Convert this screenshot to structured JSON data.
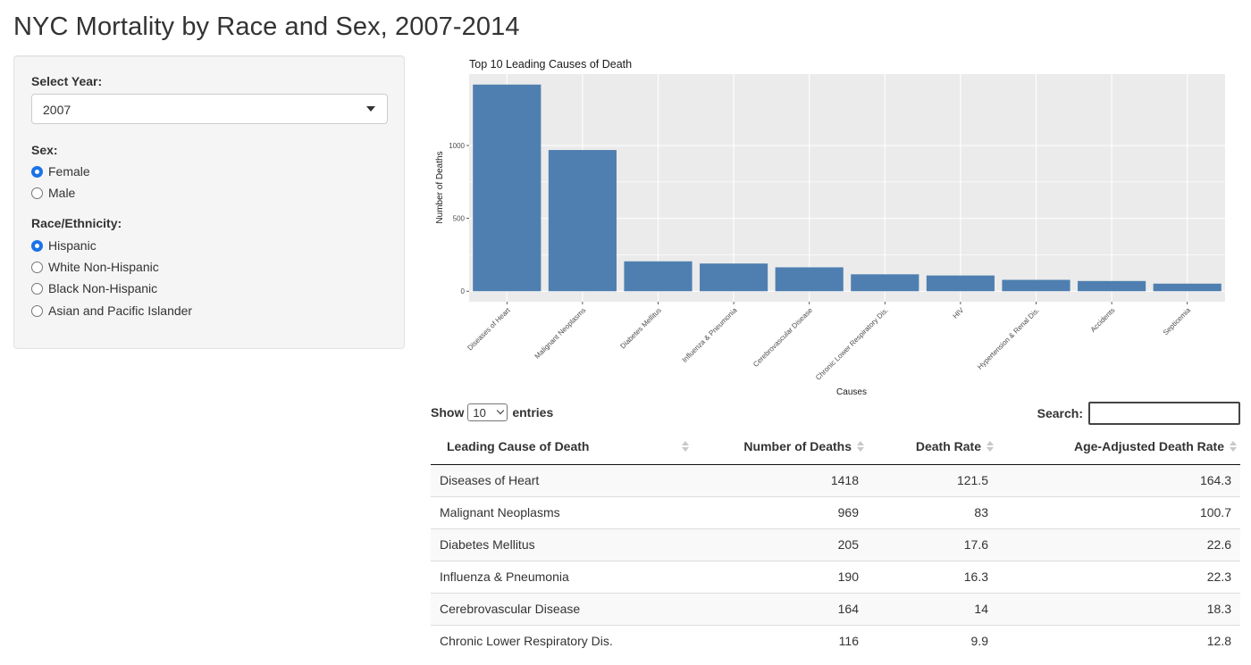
{
  "page": {
    "title": "NYC Mortality by Race and Sex, 2007-2014"
  },
  "controls": {
    "year_label": "Select Year:",
    "year_selected": "2007",
    "sex_label": "Sex:",
    "sex_options": [
      {
        "label": "Female",
        "checked": true
      },
      {
        "label": "Male",
        "checked": false
      }
    ],
    "race_label": "Race/Ethnicity:",
    "race_options": [
      {
        "label": "Hispanic",
        "checked": true
      },
      {
        "label": "White Non-Hispanic",
        "checked": false
      },
      {
        "label": "Black Non-Hispanic",
        "checked": false
      },
      {
        "label": "Asian and Pacific Islander",
        "checked": false
      }
    ]
  },
  "chart_data": {
    "type": "bar",
    "title": "Top 10 Leading Causes of Death",
    "xlabel": "Causes",
    "ylabel": "Number of Deaths",
    "categories": [
      "Diseases of Heart",
      "Malignant Neoplasms",
      "Diabetes Mellitus",
      "Influenza & Pneumonia",
      "Cerebrovascular Disease",
      "Chronic Lower Respiratory Dis.",
      "HIV",
      "Hypertension & Renal Dis.",
      "Accidents",
      "Septicemia"
    ],
    "values": [
      1418,
      969,
      205,
      190,
      164,
      116,
      108,
      78,
      70,
      52
    ],
    "yticks": [
      0,
      500,
      1000
    ],
    "ylim": [
      -72,
      1490
    ],
    "bar_color": "#4F7FB0",
    "panel_color": "#EBEBEB",
    "grid": true
  },
  "table": {
    "show_label": "Show",
    "entries_value": "10",
    "entries_label": "entries",
    "search_label": "Search:",
    "columns": [
      "Leading Cause of Death",
      "Number of Deaths",
      "Death Rate",
      "Age-Adjusted Death Rate"
    ],
    "rows": [
      [
        "Diseases of Heart",
        "1418",
        "121.5",
        "164.3"
      ],
      [
        "Malignant Neoplasms",
        "969",
        "83",
        "100.7"
      ],
      [
        "Diabetes Mellitus",
        "205",
        "17.6",
        "22.6"
      ],
      [
        "Influenza & Pneumonia",
        "190",
        "16.3",
        "22.3"
      ],
      [
        "Cerebrovascular Disease",
        "164",
        "14",
        "18.3"
      ],
      [
        "Chronic Lower Respiratory Dis.",
        "116",
        "9.9",
        "12.8"
      ]
    ]
  }
}
